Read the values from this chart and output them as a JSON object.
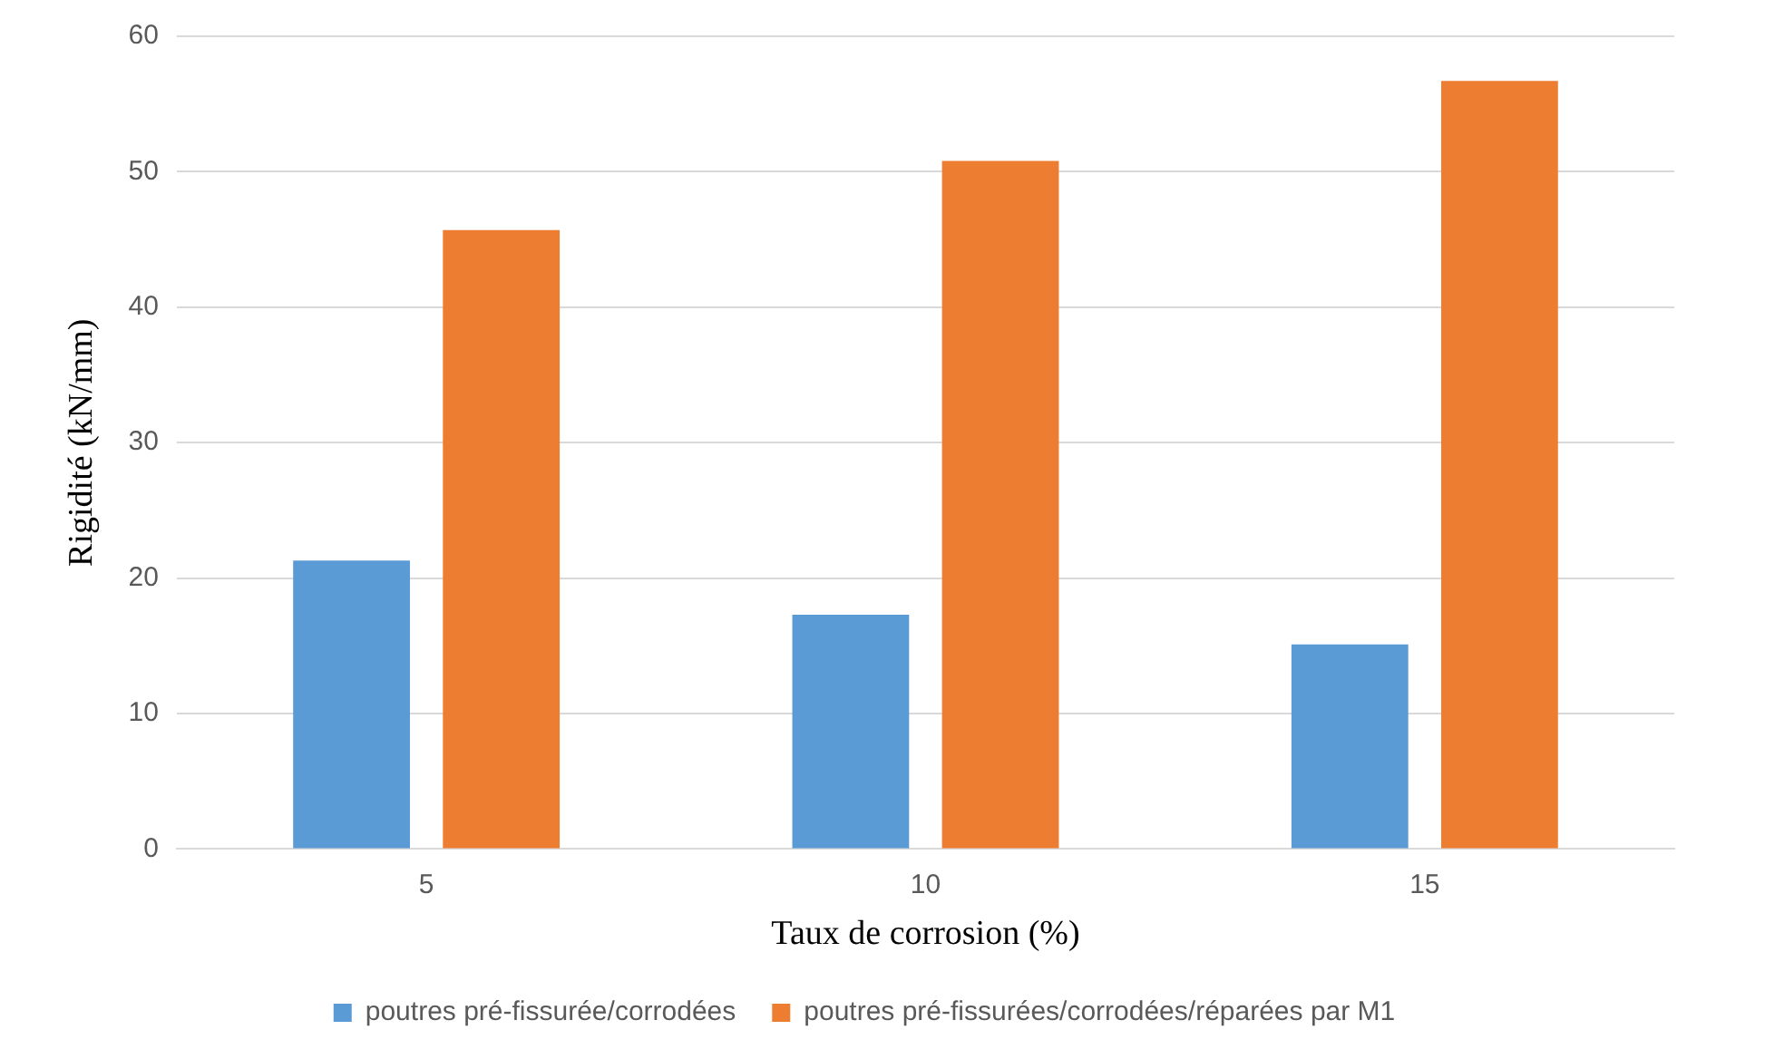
{
  "chart_data": {
    "type": "bar",
    "xlabel": "Taux de corrosion (%)",
    "ylabel": "Rigidité (kN/mm)",
    "categories": [
      "5",
      "10",
      "15"
    ],
    "series": [
      {
        "name": "poutres pré-fissurée/corrodées",
        "color": "#5b9bd5",
        "values": [
          21.3,
          17.3,
          15.1
        ]
      },
      {
        "name": "poutres pré-fissurées/corrodées/réparées par M1",
        "color": "#ed7d31",
        "values": [
          45.7,
          50.8,
          56.7
        ]
      }
    ],
    "ylim": [
      0,
      60
    ],
    "yticks": [
      0,
      10,
      20,
      30,
      40,
      50,
      60
    ],
    "grid": "y",
    "legend": "bottom"
  }
}
